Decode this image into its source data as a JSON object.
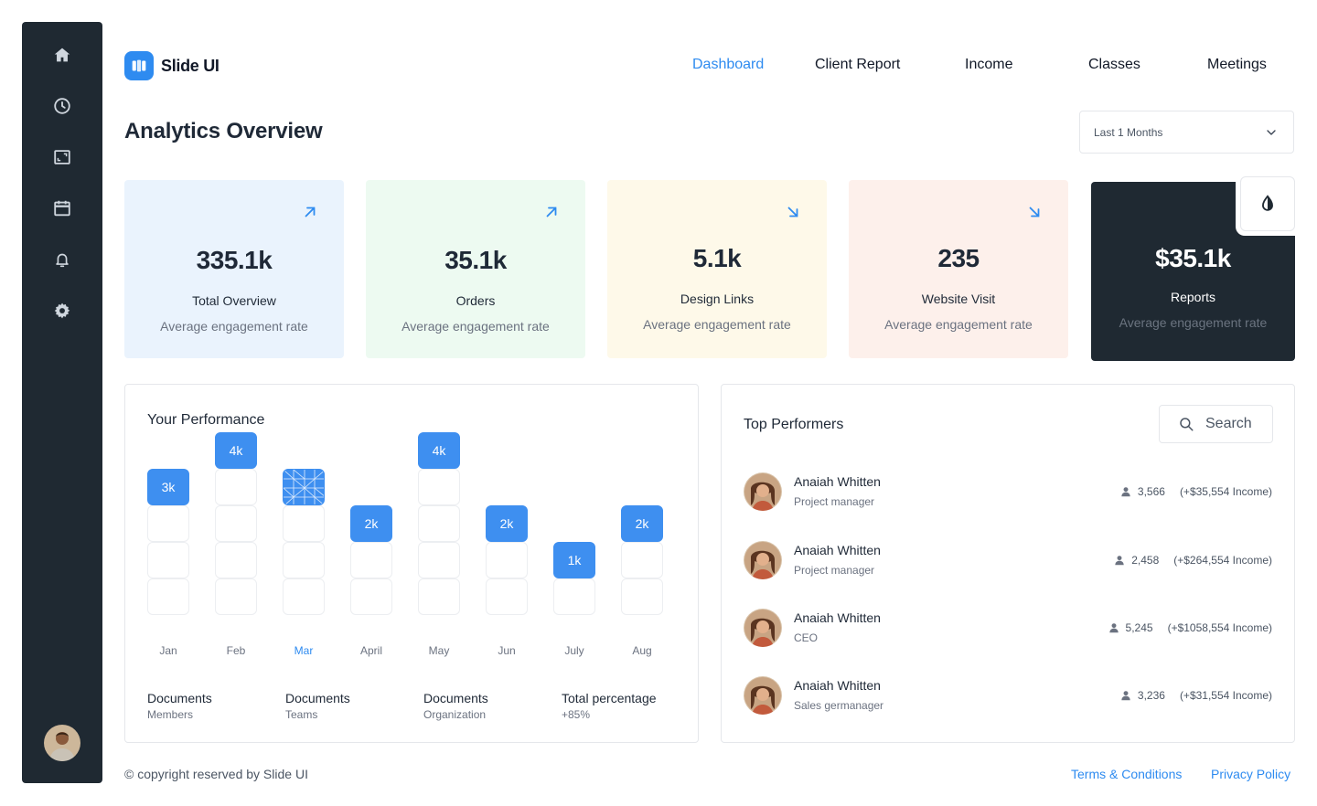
{
  "brand": {
    "name": "Slide UI",
    "accent": "#2E8BF0",
    "sidebar_bg": "#1F2932"
  },
  "sidebar": {
    "items": [
      {
        "icon": "home-icon"
      },
      {
        "icon": "clock-icon"
      },
      {
        "icon": "image-icon"
      },
      {
        "icon": "calendar-icon"
      },
      {
        "icon": "bell-icon"
      },
      {
        "icon": "gear-icon"
      }
    ]
  },
  "nav": {
    "items": [
      "Dashboard",
      "Client Report",
      "Income",
      "Classes",
      "Meetings"
    ],
    "active": "Dashboard"
  },
  "header": {
    "title": "Analytics Overview",
    "range_select": "Last 1 Months"
  },
  "stats": [
    {
      "value": "335.1k",
      "label": "Total Overview",
      "sub": "Average engagement rate",
      "trend": "up",
      "bg": "#EAF3FD"
    },
    {
      "value": "35.1k",
      "label": "Orders",
      "sub": "Average engagement rate",
      "trend": "up",
      "bg": "#EDFAF1"
    },
    {
      "value": "5.1k",
      "label": "Design Links",
      "sub": "Average engagement rate",
      "trend": "down",
      "bg": "#FEF9E9"
    },
    {
      "value": "235",
      "label": "Website Visit",
      "sub": "Average engagement rate",
      "trend": "down",
      "bg": "#FDF0EB"
    },
    {
      "value": "$35.1k",
      "label": "Reports",
      "sub": "Average engagement rate",
      "bg": "#1F2932"
    }
  ],
  "performance": {
    "title": "Your Performance",
    "bars": [
      {
        "month": "Jan",
        "label": "3k",
        "level": 4
      },
      {
        "month": "Feb",
        "label": "4k",
        "level": 5
      },
      {
        "month": "Mar",
        "label": "",
        "level": 4,
        "active": true
      },
      {
        "month": "April",
        "label": "2k",
        "level": 3
      },
      {
        "month": "May",
        "label": "4k",
        "level": 5
      },
      {
        "month": "Jun",
        "label": "2k",
        "level": 3
      },
      {
        "month": "July",
        "label": "1k",
        "level": 2
      },
      {
        "month": "Aug",
        "label": "2k",
        "level": 3
      }
    ],
    "docs": [
      {
        "title": "Documents",
        "sub": "Members"
      },
      {
        "title": "Documents",
        "sub": "Teams"
      },
      {
        "title": "Documents",
        "sub": "Organization"
      },
      {
        "title": "Total percentage",
        "sub": "+85%"
      }
    ]
  },
  "performers": {
    "title": "Top Performers",
    "search_placeholder": "Search",
    "items": [
      {
        "name": "Anaiah Whitten",
        "role": "Project manager",
        "count": "3,566",
        "income": "(+$35,554 Income)"
      },
      {
        "name": "Anaiah Whitten",
        "role": "Project manager",
        "count": "2,458",
        "income": "(+$264,554 Income)"
      },
      {
        "name": "Anaiah Whitten",
        "role": "CEO",
        "count": "5,245",
        "income": "(+$1058,554 Income)"
      },
      {
        "name": "Anaiah Whitten",
        "role": "Sales germanager",
        "count": "3,236",
        "income": "(+$31,554 Income)"
      }
    ]
  },
  "footer": {
    "copyright": "© copyright reserved by Slide UI",
    "links": [
      "Terms & Conditions",
      "Privacy Policy"
    ]
  }
}
